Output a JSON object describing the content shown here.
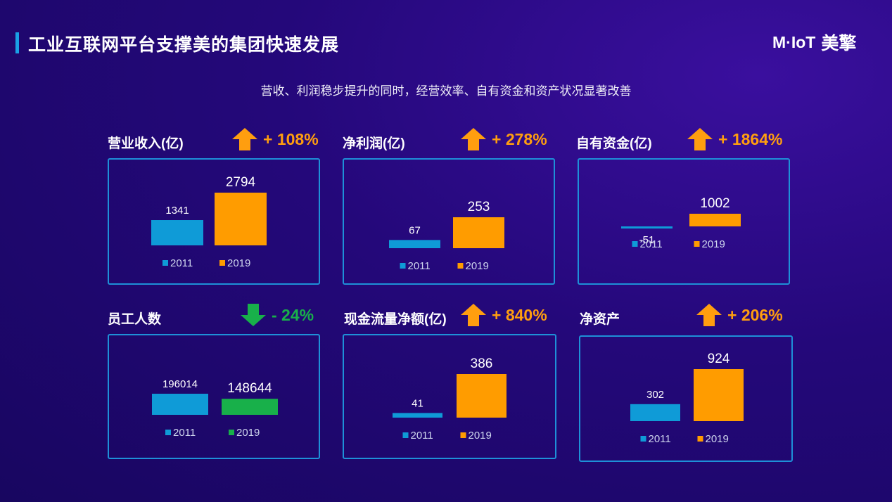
{
  "header": {
    "title": "工业互联网平台支撑美的集团快速发展",
    "logo_mark": "M·IoT",
    "logo_cn": "美擎",
    "subtitle": "营收、利润稳步提升的同时，经营效率、自有资金和资产状况显著改善"
  },
  "colors": {
    "y2011": "#0f9bd7",
    "y2019": "#ff9c00",
    "y2019_alt": "#18b04a",
    "up": "#ff9e0f",
    "down": "#18b04a",
    "border": "#1e90d8"
  },
  "panels": [
    {
      "label": "营业收入(亿)",
      "change": "+ 108%",
      "direction": "up"
    },
    {
      "label": "净利润(亿)",
      "change": "+ 278%",
      "direction": "up"
    },
    {
      "label": "自有资金(亿)",
      "change": "+ 1864%",
      "direction": "up"
    },
    {
      "label": "员工人数",
      "change": "- 24%",
      "direction": "down"
    },
    {
      "label": "现金流量净额(亿)",
      "change": "+ 840%",
      "direction": "up"
    },
    {
      "label": "净资产",
      "change": "+ 206%",
      "direction": "up"
    }
  ],
  "chart_data": [
    {
      "type": "bar",
      "title": "营业收入(亿)",
      "categories": [
        "2011",
        "2019"
      ],
      "values": [
        1341,
        2794
      ],
      "labels": [
        "1341",
        "2794"
      ],
      "legend": [
        "2011",
        "2019"
      ],
      "ylim": [
        0,
        2794
      ]
    },
    {
      "type": "bar",
      "title": "净利润(亿)",
      "categories": [
        "2011",
        "2019"
      ],
      "values": [
        67,
        253
      ],
      "labels": [
        "67",
        "253"
      ],
      "legend": [
        "2011",
        "2019"
      ],
      "ylim": [
        0,
        253
      ]
    },
    {
      "type": "bar",
      "title": "自有资金(亿)",
      "categories": [
        "2011",
        "2019"
      ],
      "values": [
        -51,
        1002
      ],
      "labels": [
        "-51",
        "1002"
      ],
      "legend": [
        "2011",
        "2019"
      ],
      "ylim": [
        -51,
        1002
      ]
    },
    {
      "type": "bar",
      "title": "员工人数",
      "categories": [
        "2011",
        "2019"
      ],
      "values": [
        196014,
        148644
      ],
      "labels": [
        "196014",
        "148644"
      ],
      "legend": [
        "2011",
        "2019"
      ],
      "ylim": [
        0,
        196014
      ]
    },
    {
      "type": "bar",
      "title": "现金流量净额(亿)",
      "categories": [
        "2011",
        "2019"
      ],
      "values": [
        41,
        386
      ],
      "labels": [
        "41",
        "386"
      ],
      "legend": [
        "2011",
        "2019"
      ],
      "ylim": [
        0,
        386
      ]
    },
    {
      "type": "bar",
      "title": "净资产",
      "categories": [
        "2011",
        "2019"
      ],
      "values": [
        302,
        924
      ],
      "labels": [
        "302",
        "924"
      ],
      "legend": [
        "2011",
        "2019"
      ],
      "ylim": [
        0,
        924
      ]
    }
  ]
}
